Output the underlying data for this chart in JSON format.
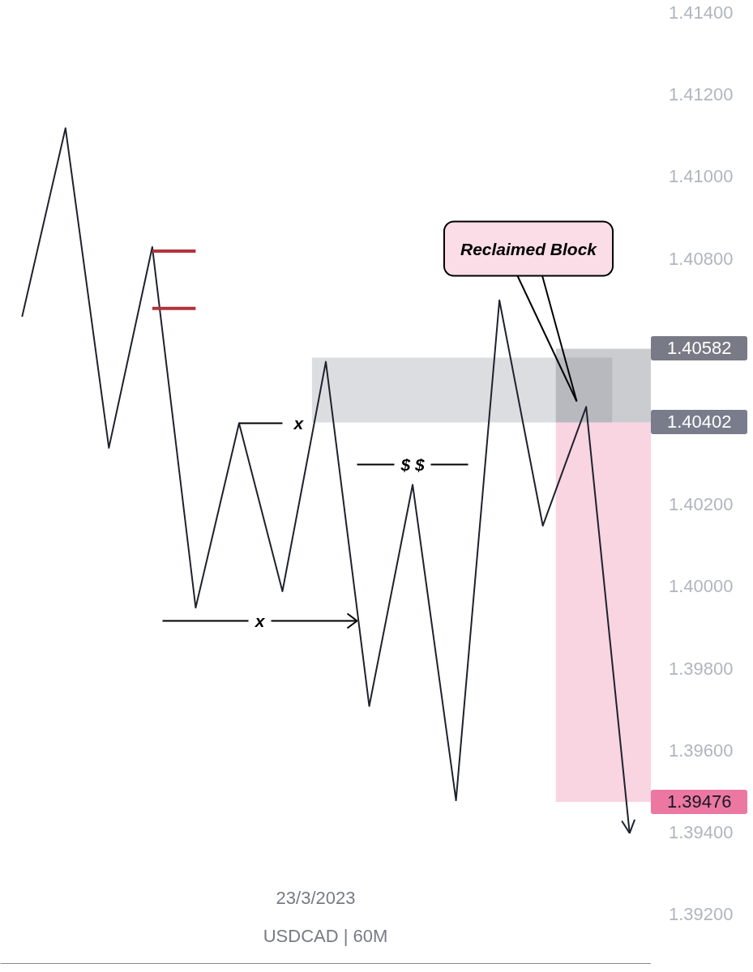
{
  "chart_data": {
    "type": "line",
    "categories": [
      null,
      null,
      null,
      null,
      null,
      null,
      null,
      null,
      null,
      null,
      null,
      null,
      null,
      null,
      null
    ],
    "series": [
      {
        "color": "#1e222d",
        "values": [
          1.4066,
          1.4112,
          1.4034,
          1.4083,
          1.3995,
          1.404,
          1.3999,
          1.4055,
          1.3971,
          1.4025,
          1.3948,
          1.407,
          1.4015,
          1.4044,
          1.394
        ]
      },
      {
        "color": "#b2323d",
        "values": [
          null,
          null,
          null,
          1.4082,
          1.4082,
          null,
          null,
          null,
          null,
          null,
          null,
          null,
          null,
          null,
          null
        ]
      },
      {
        "color": "#b2323d",
        "values": [
          null,
          null,
          null,
          1.4068,
          1.4068,
          null,
          null,
          null,
          null,
          null,
          null,
          null,
          null,
          null,
          null
        ]
      },
      {
        "name": "x",
        "color": "#000000",
        "values": [
          null,
          null,
          null,
          null,
          null,
          1.404,
          1.404,
          null,
          null,
          null,
          null,
          null,
          null,
          null,
          null
        ]
      }
    ],
    "ylim": [
      1.3908,
      1.414
    ],
    "yticks": [
      {
        "value": 1.414,
        "label": "1.41400"
      },
      {
        "value": 1.412,
        "label": "1.41200"
      },
      {
        "value": 1.41,
        "label": "1.41000"
      },
      {
        "value": 1.408,
        "label": "1.40800"
      },
      1.40582,
      1.40402,
      {
        "value": 1.402,
        "label": "1.40200"
      },
      {
        "value": 1.4,
        "label": "1.40000"
      },
      {
        "value": 1.398,
        "label": "1.39800"
      },
      {
        "value": 1.396,
        "label": "1.39600"
      },
      1.39476,
      {
        "value": 1.394,
        "label": "1.39400"
      },
      {
        "value": 1.392,
        "label": "1.39200"
      }
    ],
    "bands": [
      {
        "axis": "y",
        "from": 1.40402,
        "to": 1.4056,
        "color": "#dcdde1"
      },
      {
        "axis": "y",
        "from": 1.40402,
        "to": 1.40582,
        "color": "#cbccd0"
      },
      {
        "axis": "y",
        "from": 1.39476,
        "to": 1.40402,
        "color": "#f9d4e1"
      }
    ],
    "annotations": [
      "Reclaimed Block",
      "x",
      "$ $",
      "23/3/2023",
      "USDCAD | 60M"
    ],
    "tick_labels": "y",
    "grid": false,
    "line_style": "solid"
  }
}
